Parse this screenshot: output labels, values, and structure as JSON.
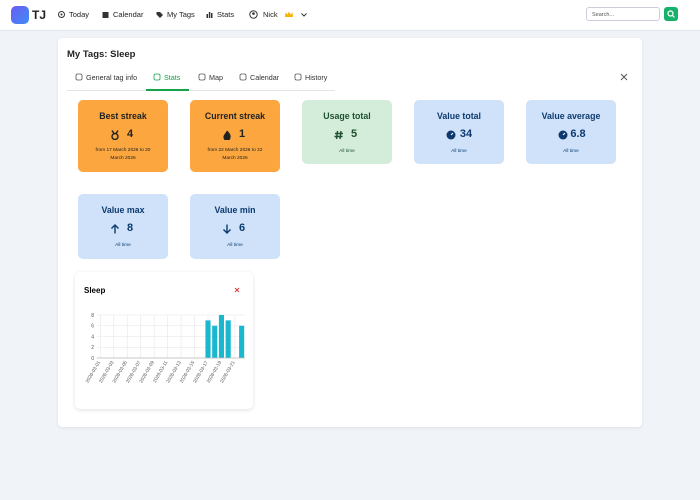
{
  "nav": {
    "brand": "TJ",
    "items": [
      "Today",
      "Calendar",
      "My Tags",
      "Stats"
    ],
    "user": "Nick"
  },
  "search": {
    "placeholder": "Search..."
  },
  "panel": {
    "title": "My Tags: Sleep",
    "tabs": [
      "General tag info",
      "Stats",
      "Map",
      "Calendar",
      "History"
    ],
    "active_tab": 1
  },
  "stats": [
    {
      "title": "Best streak",
      "value": 4,
      "note": "from 17 March 2026 to 20 March 2026",
      "color": "#fba63f"
    },
    {
      "title": "Current streak",
      "value": 1,
      "note": "from 22 March 2026 to 22 March 2026",
      "color": "#fba63f"
    },
    {
      "title": "Usage total",
      "value": 5,
      "note": "All time",
      "color": "#d4edda"
    },
    {
      "title": "Value total",
      "value": 34,
      "note": "All time",
      "color": "#cfe2fa"
    },
    {
      "title": "Value average",
      "value": 6.8,
      "note": "All time",
      "color": "#cfe2fa"
    },
    {
      "title": "Value max",
      "value": 8,
      "note": "All time",
      "color": "#cfe2fa"
    },
    {
      "title": "Value min",
      "value": 6,
      "note": "All time",
      "color": "#cfe2fa"
    }
  ],
  "chart_data": {
    "type": "bar",
    "title": "Sleep",
    "categories": [
      "2026-03-01",
      null,
      "2026-03-03",
      null,
      "2026-03-05",
      null,
      "2026-03-07",
      null,
      "2026-03-09",
      null,
      "2026-03-11",
      null,
      "2026-03-13",
      null,
      "2026-03-15",
      null,
      "2026-03-17",
      null,
      "2026-03-19",
      null,
      "2026-03-21",
      null
    ],
    "values": [
      null,
      null,
      null,
      null,
      null,
      null,
      null,
      null,
      null,
      null,
      null,
      null,
      null,
      null,
      null,
      null,
      7,
      6,
      8,
      7,
      null,
      6
    ],
    "color": "#1ab8cf",
    "ylim": [
      0,
      8
    ],
    "yticks": [
      0,
      2,
      4,
      6,
      8
    ],
    "grid": true
  }
}
